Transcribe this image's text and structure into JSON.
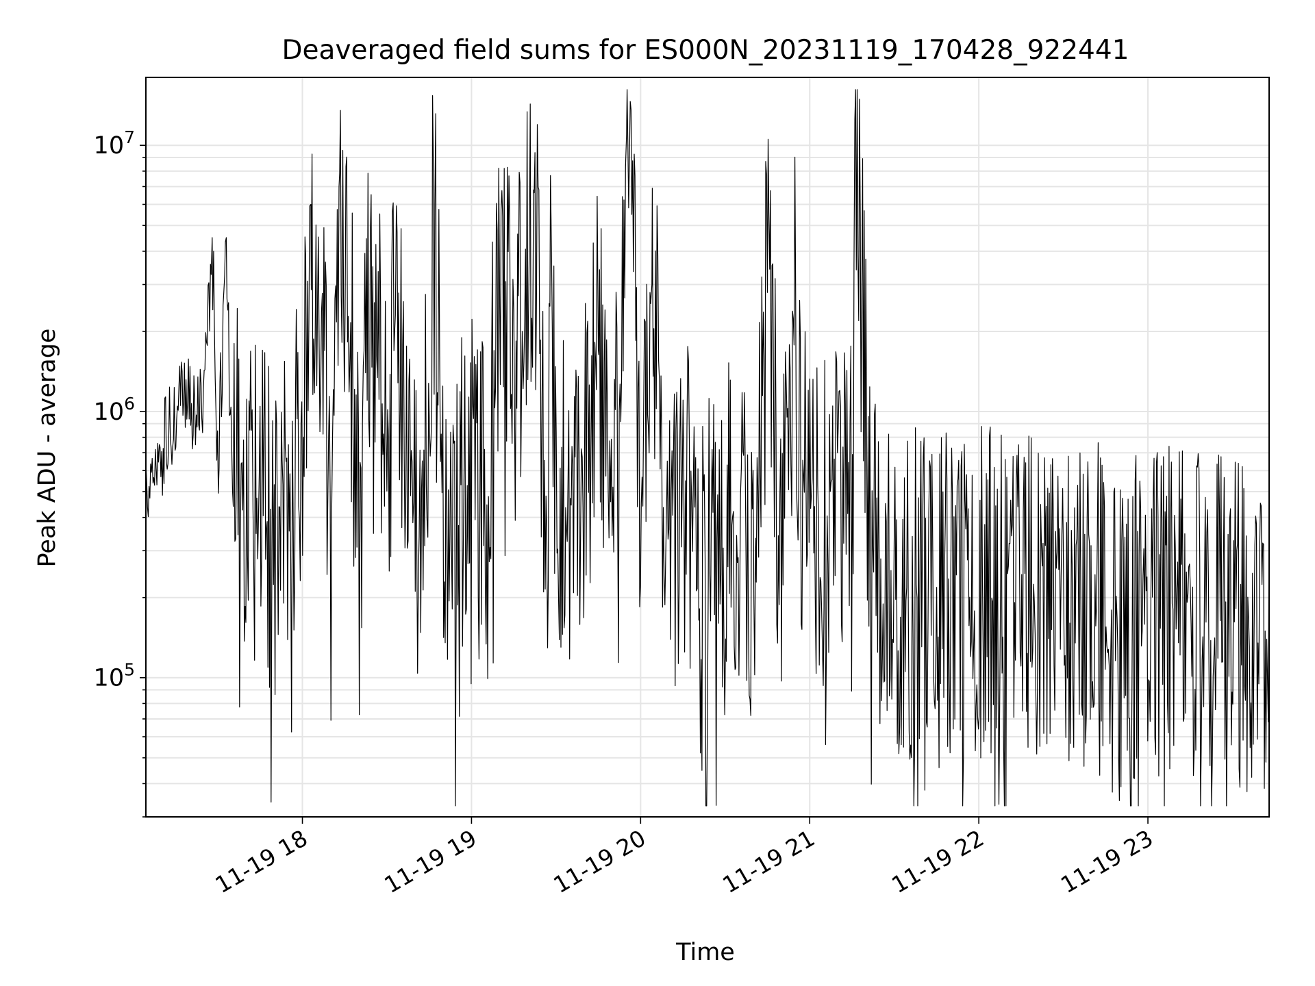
{
  "chart_data": {
    "type": "line",
    "title": "Deaveraged field sums for ES000N_20231119_170428_922441",
    "xlabel": "Time",
    "ylabel": "Peak ADU - average",
    "yscale": "log",
    "ylim": [
      30000,
      18000000
    ],
    "xlim": [
      "2023-11-19 17:04:28",
      "2023-11-19 23:43:00"
    ],
    "xticks": [
      "11-19 18",
      "11-19 19",
      "11-19 20",
      "11-19 21",
      "11-19 22",
      "11-19 23"
    ],
    "yticks": [
      {
        "base": "10",
        "exp": "5"
      },
      {
        "base": "10",
        "exp": "6"
      },
      {
        "base": "10",
        "exp": "7"
      }
    ],
    "grid": true,
    "line_color": "#000000",
    "grid_color": "#e5e5e5",
    "series": [
      {
        "x": [
          "17:04",
          "17:10",
          "17:16",
          "17:20",
          "17:25",
          "17:28",
          "17:30",
          "17:33",
          "17:35",
          "17:37",
          "17:40",
          "17:45",
          "17:50",
          "17:55",
          "18:00",
          "18:03",
          "18:10",
          "18:13",
          "18:20",
          "18:25",
          "18:30",
          "18:33",
          "18:36",
          "18:42",
          "18:47",
          "18:50",
          "18:55",
          "18:58",
          "19:05",
          "19:10",
          "19:15",
          "19:18",
          "19:22",
          "19:27",
          "19:28",
          "19:30",
          "19:38",
          "19:45",
          "19:52",
          "19:55",
          "20:00",
          "20:04",
          "20:10",
          "20:17",
          "20:20",
          "20:30",
          "20:40",
          "20:45",
          "20:50",
          "20:55",
          "20:57",
          "21:00",
          "21:04",
          "21:08",
          "21:15",
          "21:16",
          "21:22",
          "21:30",
          "21:35",
          "21:45",
          "21:55",
          "22:00",
          "22:15",
          "22:30",
          "22:45",
          "23:00",
          "23:15",
          "23:30",
          "23:43"
        ],
        "y": [
          500000,
          700000,
          1000000,
          1100000,
          900000,
          4500000,
          600000,
          4500000,
          500000,
          800000,
          400000,
          600000,
          300000,
          700000,
          500000,
          6000000,
          500000,
          7000000,
          600000,
          3500000,
          500000,
          2300000,
          900000,
          300000,
          6000000,
          500000,
          300000,
          700000,
          500000,
          2500000,
          2400000,
          2000000,
          6800000,
          400000,
          7700000,
          500000,
          400000,
          1700000,
          600000,
          11000000,
          600000,
          3000000,
          300000,
          500000,
          200000,
          400000,
          300000,
          2800000,
          300000,
          2800000,
          400000,
          700000,
          300000,
          600000,
          500000,
          12500000,
          300000,
          250000,
          200000,
          250000,
          200000,
          220000,
          200000,
          190000,
          180000,
          170000,
          180000,
          160000,
          150000
        ]
      }
    ]
  }
}
